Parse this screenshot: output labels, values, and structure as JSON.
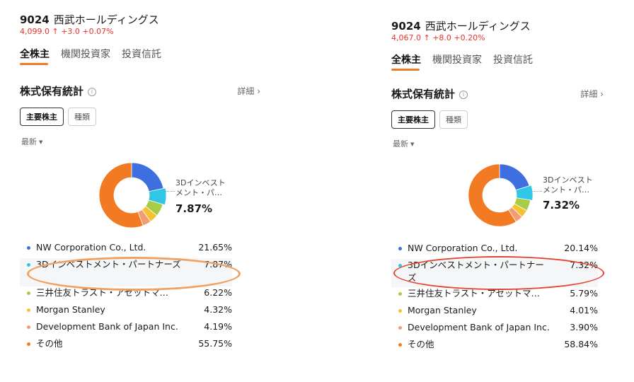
{
  "panels": [
    {
      "ticker_code": "9024",
      "company": "西武ホールディングス",
      "quote": "4,099.0 ↑ +3.0 +0.07%",
      "tabs": [
        "全株主",
        "機関投資家",
        "投資信託"
      ],
      "section_title": "株式保有統計",
      "info_icon": "i",
      "detail_label": "詳細 ›",
      "toggle_main": "主要株主",
      "toggle_type": "種類",
      "period": "最新",
      "callout_label_line1": "3Dインベスト",
      "callout_label_line2": "メント・パ…",
      "callout_pct": "7.87%",
      "highlight_color": "#f0a060",
      "holders": [
        {
          "name": "NW Corporation Co., Ltd.",
          "pct": "21.65%",
          "value": 21.65,
          "color": "#3e6fe0"
        },
        {
          "name": "3Dインベストメント・パートナーズ",
          "pct": "7.87%",
          "value": 7.87,
          "color": "#30c6e6"
        },
        {
          "name": "三井住友トラスト・アセットマ…",
          "pct": "6.22%",
          "value": 6.22,
          "color": "#a8cc48"
        },
        {
          "name": "Morgan Stanley",
          "pct": "4.32%",
          "value": 4.32,
          "color": "#f5c22f"
        },
        {
          "name": "Development Bank of Japan Inc.",
          "pct": "4.19%",
          "value": 4.19,
          "color": "#f39c74"
        },
        {
          "name": "その他",
          "pct": "55.75%",
          "value": 55.75,
          "color": "#f27a22"
        }
      ]
    },
    {
      "ticker_code": "9024",
      "company": "西武ホールディングス",
      "quote": "4,067.0 ↑ +8.0 +0.20%",
      "tabs": [
        "全株主",
        "機関投資家",
        "投資信託"
      ],
      "section_title": "株式保有統計",
      "info_icon": "i",
      "detail_label": "詳細 ›",
      "toggle_main": "主要株主",
      "toggle_type": "種類",
      "period": "最新",
      "callout_label_line1": "3Dインベスト",
      "callout_label_line2": "メント・パ…",
      "callout_pct": "7.32%",
      "highlight_color": "#e4432f",
      "holders": [
        {
          "name": "NW Corporation Co., Ltd.",
          "pct": "20.14%",
          "value": 20.14,
          "color": "#3e6fe0"
        },
        {
          "name": "3Dインベストメント・パートナーズ",
          "pct": "7.32%",
          "value": 7.32,
          "color": "#30c6e6"
        },
        {
          "name": "三井住友トラスト・アセットマ…",
          "pct": "5.79%",
          "value": 5.79,
          "color": "#a8cc48"
        },
        {
          "name": "Morgan Stanley",
          "pct": "4.01%",
          "value": 4.01,
          "color": "#f5c22f"
        },
        {
          "name": "Development Bank of Japan Inc.",
          "pct": "3.90%",
          "value": 3.9,
          "color": "#f39c74"
        },
        {
          "name": "その他",
          "pct": "58.84%",
          "value": 58.84,
          "color": "#f27a22"
        }
      ]
    }
  ]
}
